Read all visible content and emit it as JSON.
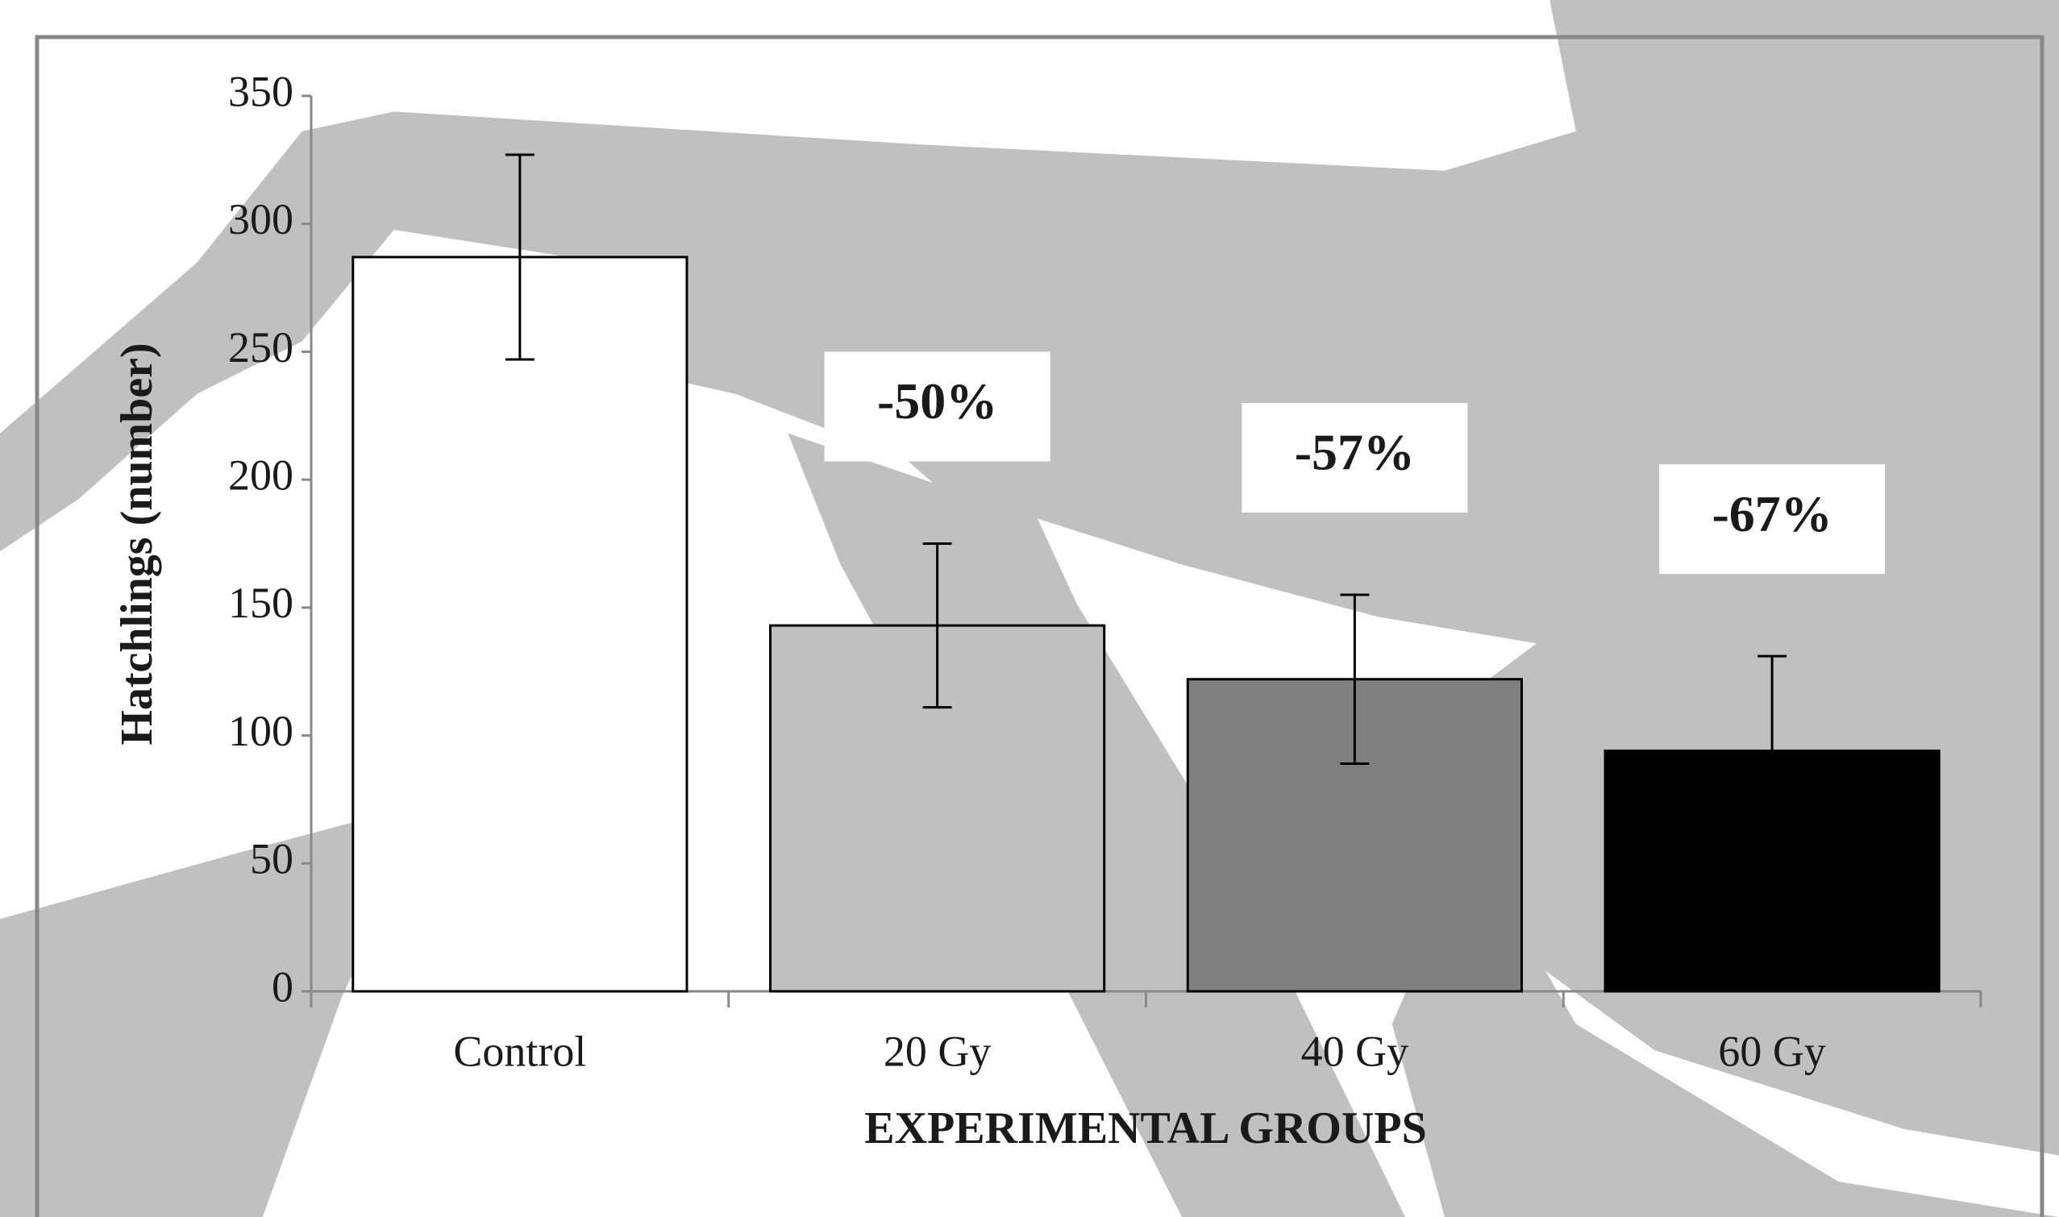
{
  "chart_data": {
    "type": "bar",
    "y_label": "Hatchlings (number)",
    "x_label": "EXPERIMENTAL GROUPS",
    "categories": [
      "Control",
      "20 Gy",
      "40 Gy",
      "60 Gy"
    ],
    "values": [
      287,
      143,
      122,
      94
    ],
    "errors": [
      40,
      32,
      33,
      37
    ],
    "colors": [
      "#ffffff",
      "#c0c0c0",
      "#808080",
      "#000000"
    ],
    "annotations": [
      null,
      "-50%",
      "-57%",
      "-67%"
    ],
    "ylim": [
      0,
      350
    ],
    "yticks": [
      0,
      50,
      100,
      150,
      200,
      250,
      300,
      350
    ],
    "grid": false
  }
}
